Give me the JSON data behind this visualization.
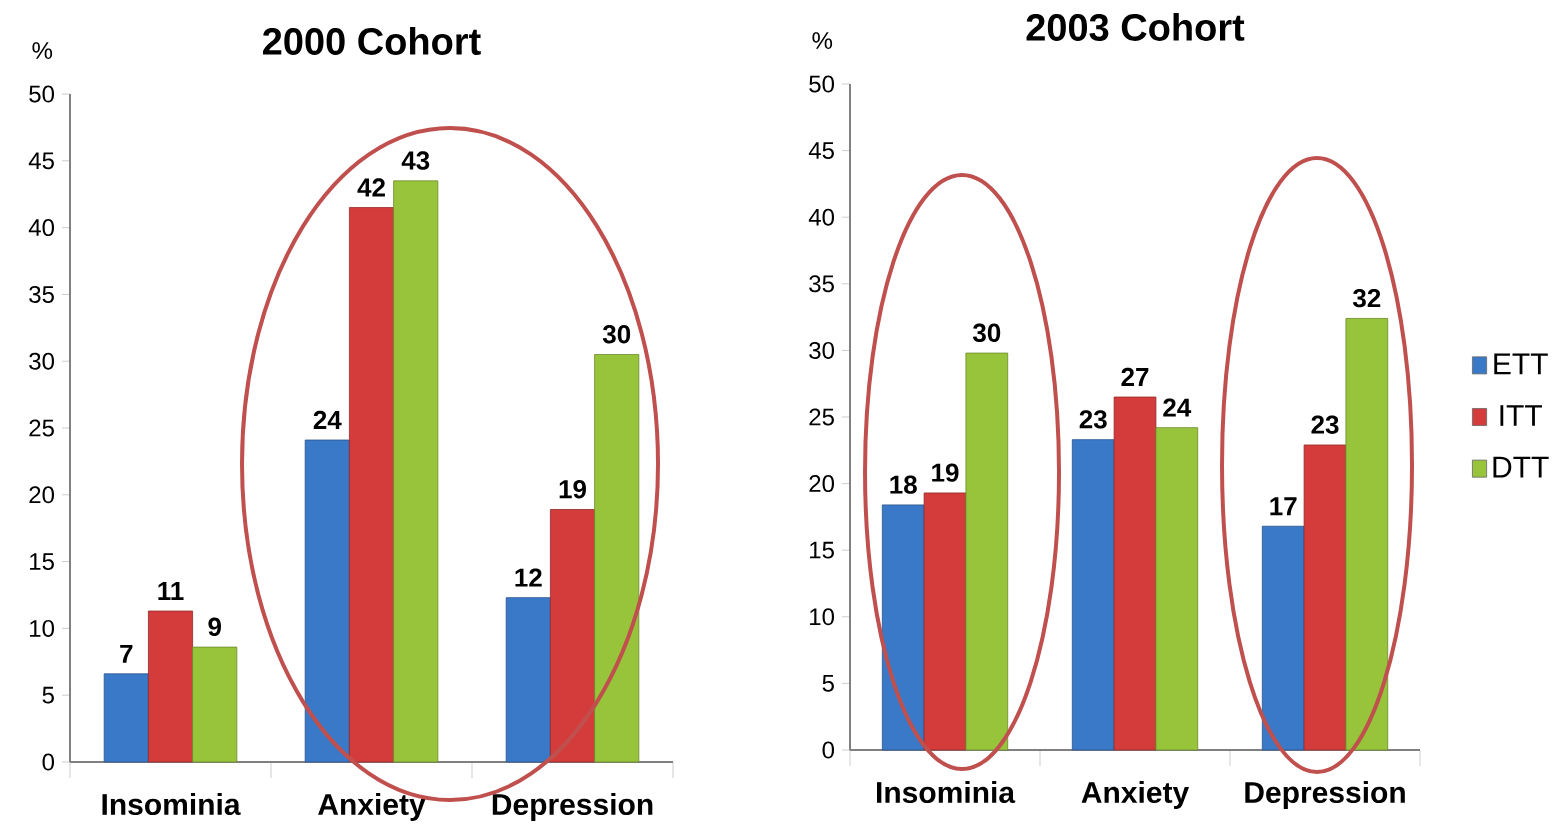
{
  "chart_data": [
    {
      "type": "bar",
      "title": "2000 Cohort",
      "ylabel": "%",
      "categories": [
        "Insominia",
        "Anxiety",
        "Depression"
      ],
      "ylim": [
        0,
        50
      ],
      "yticks": [
        0,
        5,
        10,
        15,
        20,
        25,
        30,
        35,
        40,
        45,
        50
      ],
      "legend": false,
      "series": [
        {
          "color": "#3a78c8",
          "values": [
            6.6,
            24.1,
            12.3
          ],
          "value_labels": [
            "7",
            "24",
            "12"
          ]
        },
        {
          "color": "#d43c3c",
          "values": [
            11.3,
            41.5,
            18.9
          ],
          "value_labels": [
            "11",
            "42",
            "19"
          ]
        },
        {
          "color": "#98c43c",
          "values": [
            8.6,
            43.5,
            30.5
          ],
          "value_labels": [
            "9",
            "43",
            "30"
          ]
        }
      ]
    },
    {
      "type": "bar",
      "title": "2003 Cohort",
      "ylabel": "%",
      "categories": [
        "Insominia",
        "Anxiety",
        "Depression"
      ],
      "ylim": [
        0,
        50
      ],
      "yticks": [
        0,
        5,
        10,
        15,
        20,
        25,
        30,
        35,
        40,
        45,
        50
      ],
      "legend": "right",
      "series": [
        {
          "name": "ETT",
          "color": "#3a78c8",
          "values": [
            18.4,
            23.3,
            16.8
          ],
          "value_labels": [
            "18",
            "23",
            "17"
          ]
        },
        {
          "name": "ITT",
          "color": "#d43c3c",
          "values": [
            19.3,
            26.5,
            22.9
          ],
          "value_labels": [
            "19",
            "27",
            "23"
          ]
        },
        {
          "name": "DTT",
          "color": "#98c43c",
          "values": [
            29.8,
            24.2,
            32.4
          ],
          "value_labels": [
            "30",
            "24",
            "32"
          ]
        }
      ]
    }
  ]
}
